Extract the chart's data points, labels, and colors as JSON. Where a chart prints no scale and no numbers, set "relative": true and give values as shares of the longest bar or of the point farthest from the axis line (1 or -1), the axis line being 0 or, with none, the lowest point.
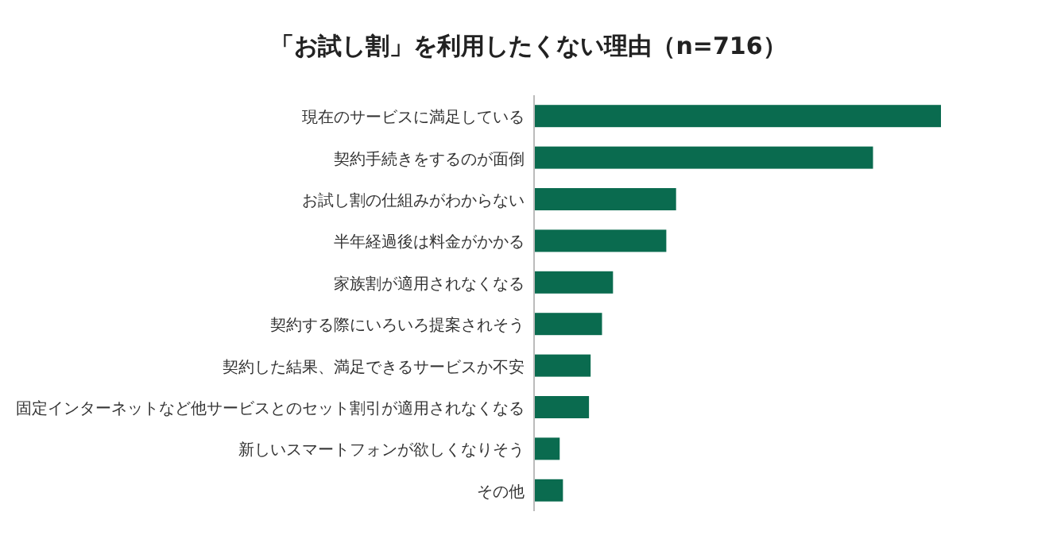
{
  "chart_data": {
    "type": "bar",
    "orientation": "horizontal",
    "relative": true,
    "title": "「お試し割」を利用したくない理由（n=716）",
    "categories": [
      "現在のサービスに満足している",
      "契約手続きをするのが面倒",
      "お試し割の仕組みがわからない",
      "半年経過後は料金がかかる",
      "家族割が適用されなくなる",
      "契約する際にいろいろ提案されそう",
      "契約した結果、満足できるサービスか不安",
      "固定インターネットなど他サービスとのセット割引が適用されなくなる",
      "新しいスマートフォンが欲しくなりそう",
      "その他"
    ],
    "values": [
      1,
      0.833,
      0.349,
      0.325,
      0.194,
      0.167,
      0.139,
      0.135,
      0.063,
      0.071
    ],
    "color": "#0a6b4f"
  }
}
